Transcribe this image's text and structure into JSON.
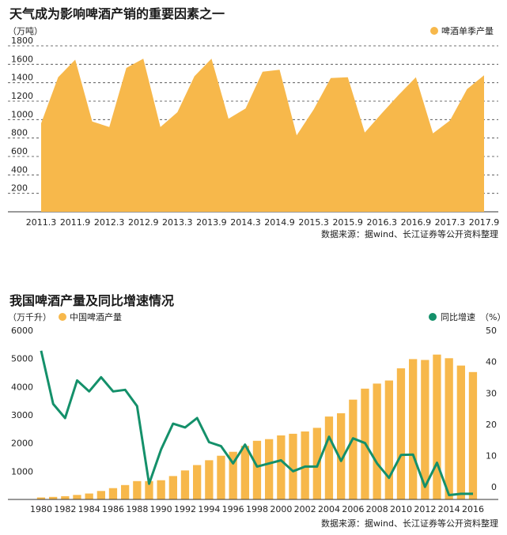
{
  "colors": {
    "accent": "#F7B84B",
    "line": "#14906A",
    "text": "#1a1a1a"
  },
  "chart_data": [
    {
      "type": "area",
      "title": "天气成为影响啤酒产销的重要因素之一",
      "unit_label": "（万吨）",
      "legend": "啤酒单季产量",
      "legend_position": "top-right",
      "source": "数据来源：据wind、长江证券等公开资料整理",
      "grid": true,
      "ylim": [
        0,
        1800
      ],
      "yticks": [
        200,
        400,
        600,
        800,
        1000,
        1200,
        1400,
        1600,
        1800
      ],
      "xtick_labels": [
        "2011.3",
        "2011.9",
        "2012.3",
        "2012.9",
        "2013.3",
        "2013.9",
        "2014.3",
        "2014.9",
        "2015.3",
        "2015.9",
        "2016.3",
        "2016.9",
        "2017.3",
        "2017.9"
      ],
      "x": [
        "2011.3",
        "2011.6",
        "2011.9",
        "2011.12",
        "2012.3",
        "2012.6",
        "2012.9",
        "2012.12",
        "2013.3",
        "2013.6",
        "2013.9",
        "2013.12",
        "2014.3",
        "2014.6",
        "2014.9",
        "2014.12",
        "2015.3",
        "2015.6",
        "2015.9",
        "2015.12",
        "2016.3",
        "2016.6",
        "2016.9",
        "2016.12",
        "2017.3",
        "2017.6",
        "2017.9"
      ],
      "values": [
        960,
        1460,
        1650,
        980,
        920,
        1560,
        1660,
        920,
        1080,
        1470,
        1660,
        1010,
        1120,
        1520,
        1540,
        830,
        1110,
        1450,
        1460,
        860,
        1070,
        1270,
        1460,
        850,
        990,
        1330,
        1480
      ]
    },
    {
      "type": "bar",
      "title": "我国啤酒产量及同比增速情况",
      "unit_label": "（万千升）",
      "legend_position": "top",
      "source": "数据来源：据wind、长江证券等公开资料整理",
      "grid": false,
      "x": [
        1980,
        1981,
        1982,
        1983,
        1984,
        1985,
        1986,
        1987,
        1988,
        1989,
        1990,
        1991,
        1992,
        1993,
        1994,
        1995,
        1996,
        1997,
        1998,
        1999,
        2000,
        2001,
        2002,
        2003,
        2004,
        2005,
        2006,
        2007,
        2008,
        2009,
        2010,
        2011,
        2012,
        2013,
        2014,
        2015,
        2016
      ],
      "xtick_labels": [
        "1980",
        "1982",
        "1984",
        "1986",
        "1988",
        "1990",
        "1992",
        "1994",
        "1996",
        "1998",
        "2000",
        "2002",
        "2004",
        "2006",
        "2008",
        "2010",
        "2012",
        "2014",
        "2016"
      ],
      "ylim_left": [
        0,
        6000
      ],
      "yticks_left": [
        1000,
        2000,
        3000,
        4000,
        5000,
        6000
      ],
      "ylim_right": [
        -4,
        50
      ],
      "yticks_right": [
        0,
        10,
        20,
        30,
        40,
        50
      ],
      "right_axis_label": "（%）",
      "series": [
        {
          "name": "中国啤酒产量",
          "axis": "left",
          "values": [
            70,
            90,
            115,
            160,
            210,
            300,
            400,
            510,
            650,
            650,
            680,
            830,
            1030,
            1220,
            1390,
            1550,
            1690,
            1900,
            2080,
            2140,
            2270,
            2330,
            2410,
            2540,
            2940,
            3060,
            3540,
            3930,
            4110,
            4220,
            4650,
            4980,
            4950,
            5140,
            5010,
            4750,
            4520
          ]
        },
        {
          "name": "同比增速",
          "axis": "right",
          "values": [
            43.5,
            26.5,
            22,
            34,
            30.5,
            35,
            30.5,
            31,
            25.8,
            1,
            12,
            20.2,
            19,
            22,
            14.3,
            13,
            7.5,
            13.5,
            6.5,
            7.5,
            8.5,
            5,
            6.5,
            6.5,
            16,
            8.3,
            15.5,
            14,
            7.5,
            2.9,
            10.2,
            10.3,
            0,
            7.7,
            -2.6,
            -2.2,
            -2.2
          ]
        }
      ]
    }
  ]
}
